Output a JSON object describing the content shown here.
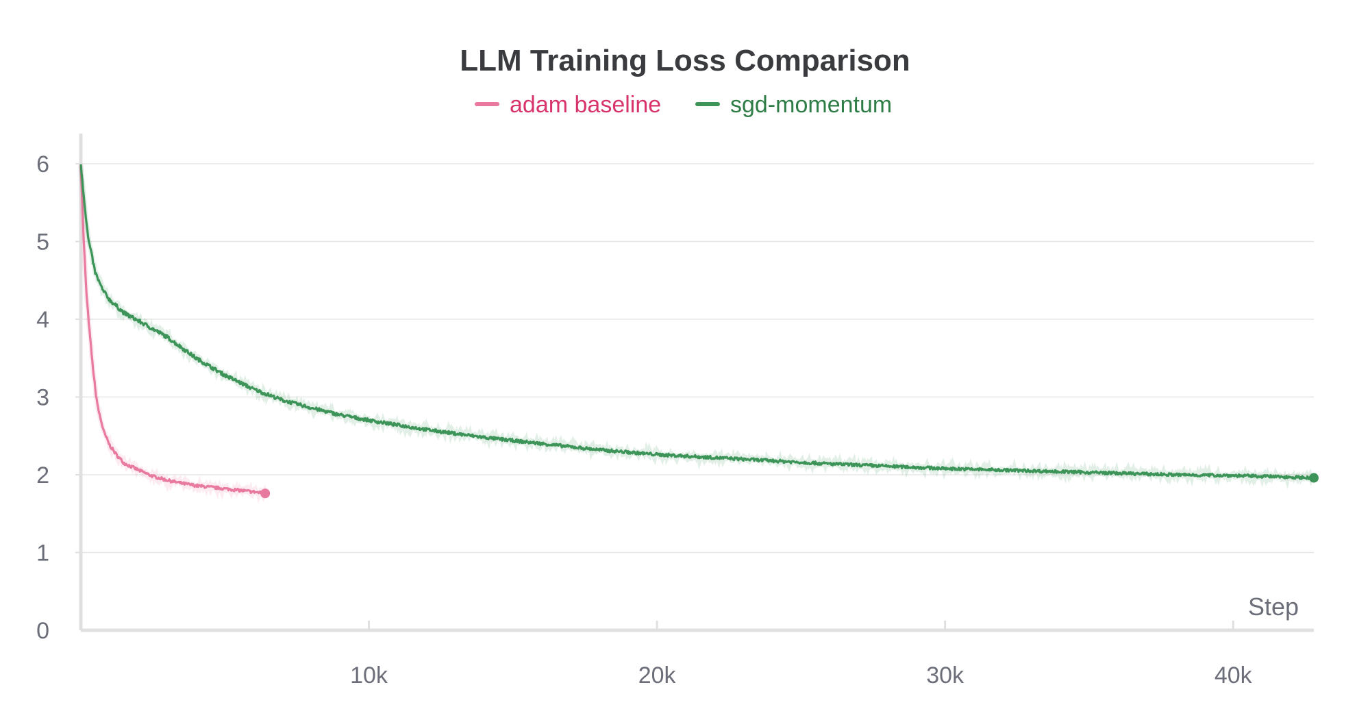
{
  "chart_data": {
    "type": "line",
    "title": "LLM Training Loss Comparison",
    "xlabel": "Step",
    "ylabel": "",
    "xlim": [
      0,
      42800
    ],
    "ylim": [
      0,
      6.3
    ],
    "x_ticks": [
      {
        "value": 10000,
        "label": "10k"
      },
      {
        "value": 20000,
        "label": "20k"
      },
      {
        "value": 30000,
        "label": "30k"
      },
      {
        "value": 40000,
        "label": "40k"
      }
    ],
    "y_ticks": [
      {
        "value": 0,
        "label": "0"
      },
      {
        "value": 1,
        "label": "1"
      },
      {
        "value": 2,
        "label": "2"
      },
      {
        "value": 3,
        "label": "3"
      },
      {
        "value": 4,
        "label": "4"
      },
      {
        "value": 5,
        "label": "5"
      },
      {
        "value": 6,
        "label": "6"
      }
    ],
    "grid": true,
    "legend_position": "top-center",
    "series": [
      {
        "name": "adam baseline",
        "color": "#e8799f",
        "legend_text_color": "#d8336a",
        "x": [
          0,
          100,
          200,
          300,
          400,
          500,
          600,
          800,
          1000,
          1250,
          1500,
          2000,
          2500,
          3000,
          3500,
          4000,
          4500,
          5000,
          5500,
          6000,
          6400
        ],
        "y": [
          6.0,
          5.0,
          4.3,
          3.85,
          3.45,
          3.1,
          2.85,
          2.55,
          2.38,
          2.25,
          2.15,
          2.06,
          1.98,
          1.93,
          1.89,
          1.86,
          1.84,
          1.82,
          1.8,
          1.78,
          1.76
        ]
      },
      {
        "name": "sgd-momentum",
        "color": "#3d9458",
        "legend_text_color": "#2f7d46",
        "x": [
          0,
          100,
          250,
          500,
          750,
          1000,
          1500,
          2000,
          3000,
          4000,
          5000,
          6000,
          7000,
          8000,
          9000,
          10000,
          12000,
          14000,
          16000,
          18000,
          20000,
          22000,
          24000,
          26000,
          28000,
          30000,
          32000,
          34000,
          36000,
          38000,
          40000,
          42000,
          42800
        ],
        "y": [
          6.0,
          5.6,
          5.05,
          4.6,
          4.38,
          4.25,
          4.08,
          3.98,
          3.77,
          3.5,
          3.28,
          3.1,
          2.96,
          2.86,
          2.77,
          2.7,
          2.58,
          2.48,
          2.4,
          2.32,
          2.26,
          2.22,
          2.18,
          2.14,
          2.11,
          2.08,
          2.06,
          2.04,
          2.02,
          2.0,
          1.99,
          1.97,
          1.96
        ]
      }
    ]
  }
}
